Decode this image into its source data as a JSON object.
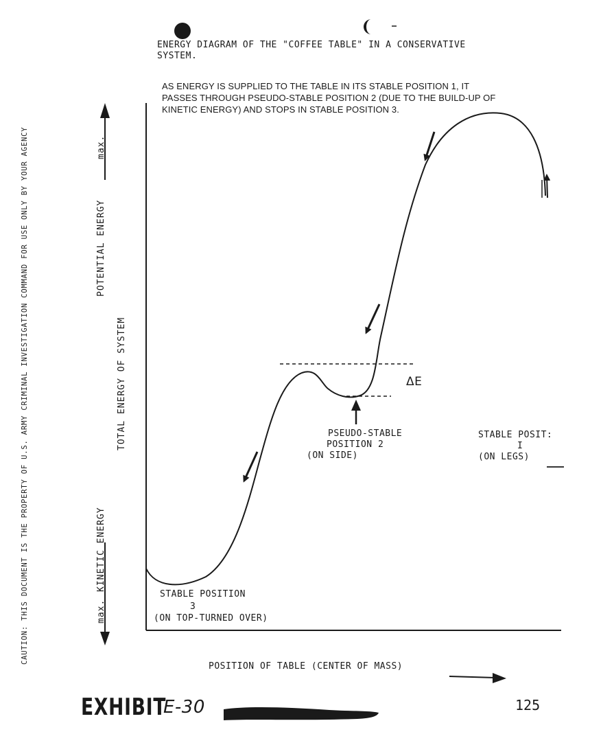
{
  "header": {
    "title_line1": "ENERGY DIAGRAM OF THE \"COFFEE TABLE\" IN A CONSERVATIVE",
    "title_line2": "SYSTEM.",
    "desc_line1": "AS ENERGY IS SUPPLIED TO THE TABLE IN ITS STABLE POSITION 1, IT",
    "desc_line2": "PASSES THROUGH PSEUDO-STABLE POSITION 2 (DUE TO THE BUILD-UP OF",
    "desc_line3": "KINETIC ENERGY) AND STOPS IN STABLE POSITION 3."
  },
  "axes": {
    "potential_label": "POTENTIAL   ENERGY",
    "potential_max": "max.",
    "kinetic_max": "max.",
    "kinetic_label": "KINETIC ENERGY",
    "total_label": "TOTAL ENERGY OF SYSTEM",
    "x_label": "POSITION OF TABLE (CENTER OF MASS)"
  },
  "annotations": {
    "delta_e": "ΔE",
    "pseudo_line1": "PSEUDO-STABLE",
    "pseudo_line2": "POSITION 2",
    "pseudo_line3": "(ON SIDE)",
    "stable1_line1": "STABLE POSIT:",
    "stable1_line2": "I",
    "stable1_line3": "(ON LEGS)",
    "stable3_line1": "STABLE POSITION",
    "stable3_line2": "3",
    "stable3_line3": "(ON TOP-TURNED OVER)"
  },
  "side_caption": "CAUTION: THIS DOCUMENT IS THE PROPERTY OF U.S. ARMY CRIMINAL INVESTIGATION COMMAND FOR USE ONLY BY YOUR AGENCY",
  "footer": {
    "exhibit": "EXHIBIT",
    "exhibit_no": "E-30",
    "page_number": "125"
  },
  "colors": {
    "ink": "#1a1a1a",
    "paper": "#ffffff"
  }
}
